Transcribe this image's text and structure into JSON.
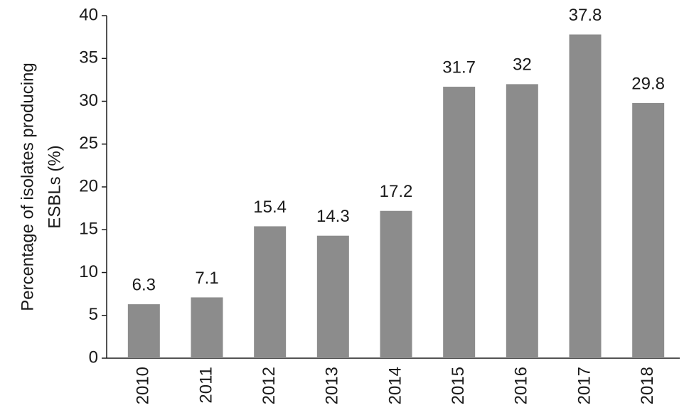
{
  "chart_data": {
    "type": "bar",
    "ylabel": [
      "Percentage of isolates producing",
      "ESBLs (%)"
    ],
    "categories": [
      "2010",
      "2011",
      "2012",
      "2013",
      "2014",
      "2015",
      "2016",
      "2017",
      "2018"
    ],
    "values": [
      6.3,
      7.1,
      15.4,
      14.3,
      17.2,
      31.7,
      32,
      37.8,
      29.8
    ],
    "color": "#8c8c8c",
    "ylim": [
      0,
      40
    ],
    "yticks": [
      0,
      5,
      10,
      15,
      20,
      25,
      30,
      35,
      40
    ],
    "grid": false
  }
}
